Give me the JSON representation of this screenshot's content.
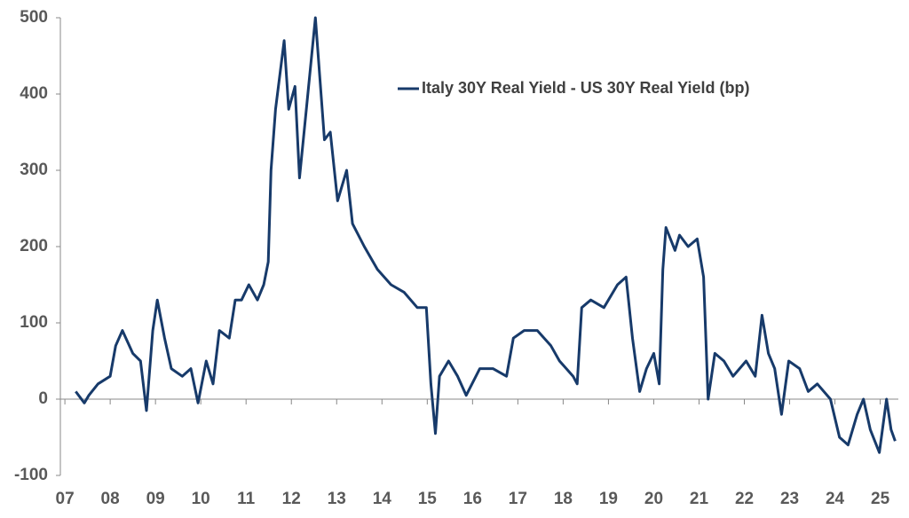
{
  "chart_data": {
    "type": "line",
    "series": [
      {
        "name": "Italy 30Y Real Yield - US 30Y Real Yield (bp)",
        "color": "#173a6a",
        "values": [
          10,
          -5,
          5,
          20,
          30,
          70,
          90,
          60,
          50,
          -15,
          90,
          130,
          80,
          40,
          30,
          40,
          -5,
          50,
          20,
          90,
          80,
          130,
          130,
          150,
          130,
          150,
          180,
          300,
          380,
          470,
          380,
          410,
          290,
          380,
          500,
          420,
          340,
          350,
          260,
          300,
          230,
          200,
          170,
          150,
          140,
          120,
          120,
          20,
          -45,
          30,
          50,
          30,
          5,
          40,
          40,
          30,
          80,
          90,
          90,
          70,
          50,
          30,
          20,
          120,
          130,
          120,
          150,
          160,
          80,
          10,
          40,
          60,
          20,
          170,
          225,
          195,
          215,
          200,
          210,
          160,
          0,
          60,
          50,
          30,
          50,
          30,
          110,
          60,
          40,
          -20,
          50,
          40,
          10,
          20,
          0,
          -50,
          -60,
          -20,
          0,
          -40,
          -70,
          0,
          -40,
          -55
        ]
      }
    ],
    "x": [
      7.24,
      7.43,
      7.53,
      7.73,
      8.0,
      8.12,
      8.27,
      8.5,
      8.67,
      8.8,
      8.94,
      9.04,
      9.2,
      9.35,
      9.59,
      9.78,
      9.94,
      10.12,
      10.27,
      10.41,
      10.63,
      10.76,
      10.9,
      11.06,
      11.25,
      11.39,
      11.49,
      11.55,
      11.65,
      11.84,
      11.94,
      12.08,
      12.18,
      12.33,
      12.53,
      12.63,
      12.73,
      12.86,
      13.02,
      13.22,
      13.35,
      13.61,
      13.9,
      14.2,
      14.49,
      14.78,
      14.98,
      15.08,
      15.18,
      15.27,
      15.47,
      15.67,
      15.86,
      16.16,
      16.45,
      16.75,
      16.9,
      17.14,
      17.43,
      17.73,
      17.92,
      18.22,
      18.31,
      18.41,
      18.61,
      18.9,
      19.2,
      19.39,
      19.53,
      19.69,
      19.84,
      20.0,
      20.12,
      20.2,
      20.27,
      20.47,
      20.57,
      20.76,
      20.96,
      21.1,
      21.2,
      21.35,
      21.55,
      21.75,
      22.04,
      22.24,
      22.39,
      22.53,
      22.67,
      22.82,
      22.98,
      23.22,
      23.41,
      23.61,
      23.9,
      24.1,
      24.29,
      24.49,
      24.63,
      24.78,
      24.98,
      25.14,
      25.24,
      25.33
    ],
    "xlim": [
      6.9,
      25.4
    ],
    "xticks": [
      {
        "value": 7,
        "label": "07"
      },
      {
        "value": 8,
        "label": "08"
      },
      {
        "value": 9,
        "label": "09"
      },
      10,
      11,
      12,
      13,
      14,
      15,
      16,
      17,
      18,
      19,
      20,
      21,
      22,
      23,
      24,
      25
    ],
    "ylim": [
      -100,
      500
    ],
    "yticks": [
      -100,
      0,
      100,
      200,
      300,
      400,
      500
    ],
    "legend": "top-right"
  }
}
